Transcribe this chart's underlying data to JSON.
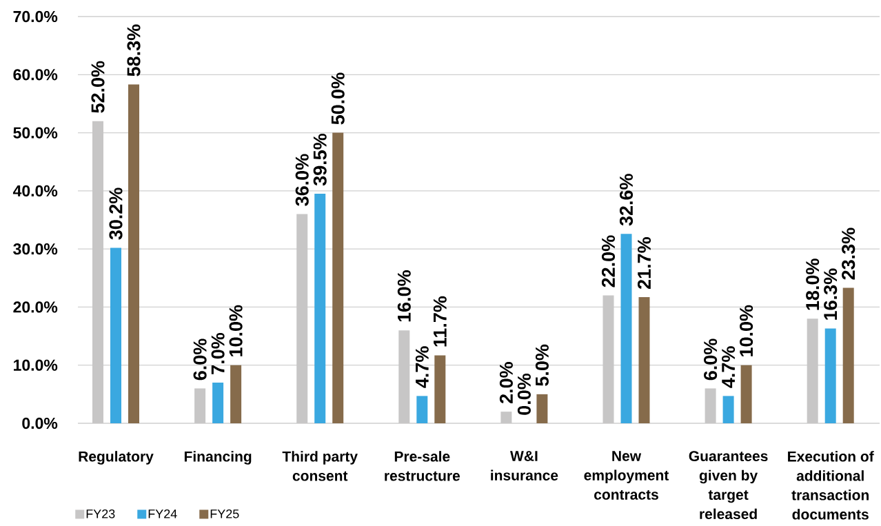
{
  "chart_data": {
    "type": "bar",
    "categories": [
      "Regulatory",
      "Financing",
      "Third party consent",
      "Pre-sale restructure",
      "W&I insurance",
      "New employment contracts",
      "Guarantees given by target released",
      "Execution of additional transaction documents"
    ],
    "series": [
      {
        "name": "FY23",
        "color": "#c7c6c6",
        "values": [
          52.0,
          6.0,
          36.0,
          16.0,
          2.0,
          22.0,
          6.0,
          18.0
        ],
        "value_labels": [
          "52.0%",
          "6.0%",
          "36.0%",
          "16.0%",
          "2.0%",
          "22.0%",
          "6.0%",
          "18.0%"
        ]
      },
      {
        "name": "FY24",
        "color": "#3aa8e0",
        "values": [
          30.2,
          7.0,
          39.5,
          4.7,
          0.0,
          32.6,
          4.7,
          16.3
        ],
        "value_labels": [
          "30.2%",
          "7.0%",
          "39.5%",
          "4.7%",
          "0.0%",
          "32.6%",
          "4.7%",
          "16.3%"
        ]
      },
      {
        "name": "FY25",
        "color": "#866b4b",
        "values": [
          58.3,
          10.0,
          50.0,
          11.7,
          5.0,
          21.7,
          10.0,
          23.3
        ],
        "value_labels": [
          "58.3%",
          "10.0%",
          "50.0%",
          "11.7%",
          "5.0%",
          "21.7%",
          "10.0%",
          "23.3%"
        ]
      }
    ],
    "ylim": [
      0,
      70
    ],
    "yticks": [
      {
        "value": 0,
        "label": "0.0%"
      },
      {
        "value": 10,
        "label": "10.0%"
      },
      {
        "value": 20,
        "label": "20.0%"
      },
      {
        "value": 30,
        "label": "30.0%"
      },
      {
        "value": 40,
        "label": "40.0%"
      },
      {
        "value": 50,
        "label": "50.0%"
      },
      {
        "value": 60,
        "label": "60.0%"
      },
      {
        "value": 70,
        "label": "70.0%"
      }
    ],
    "grid": "y",
    "legend": "bottom left"
  }
}
